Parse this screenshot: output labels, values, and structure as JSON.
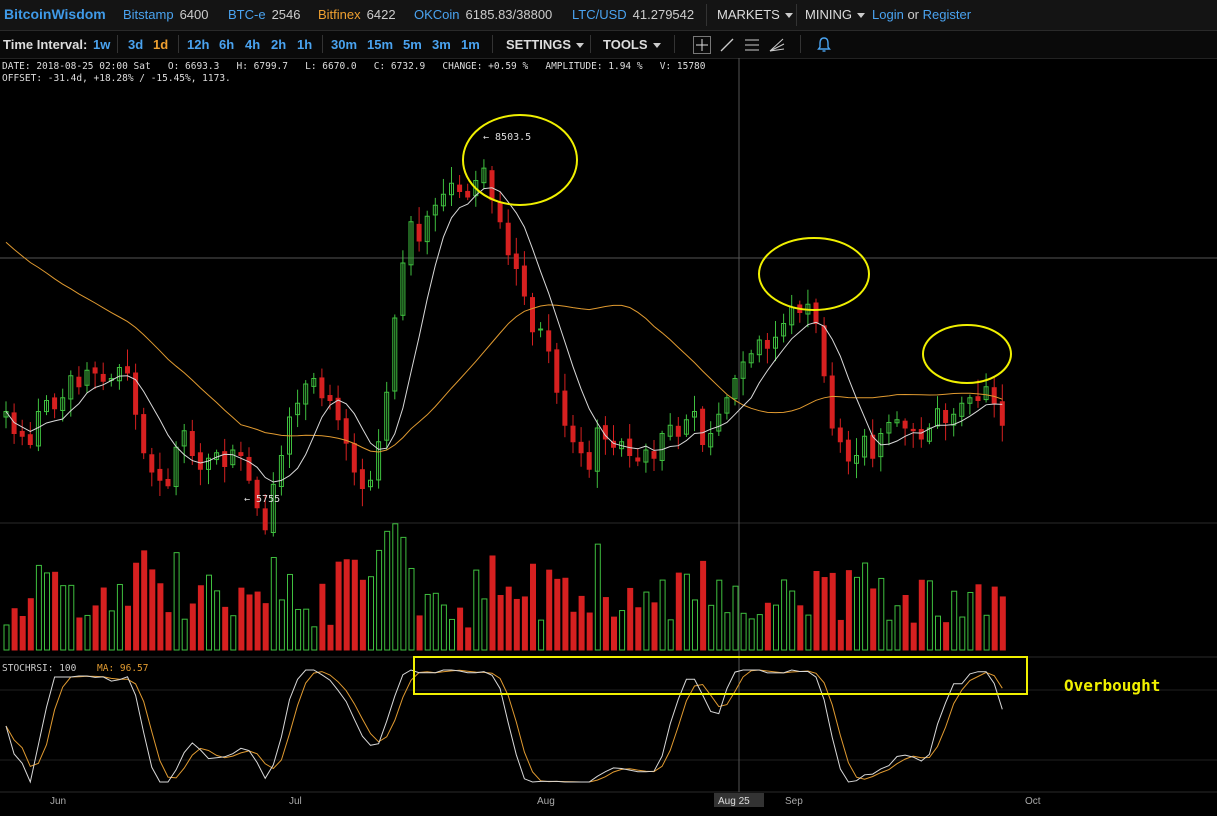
{
  "topbar": {
    "brand": "BitcoinWisdom",
    "exchanges": [
      {
        "name": "Bitstamp",
        "price": "6400",
        "color": "#4aa3f0"
      },
      {
        "name": "BTC-e",
        "price": "2546",
        "color": "#4aa3f0"
      },
      {
        "name": "Bitfinex",
        "price": "6422",
        "color": "#f0a030"
      },
      {
        "name": "OKCoin",
        "price": "6185.83/38800",
        "color": "#4aa3f0"
      },
      {
        "name": "LTC/USD",
        "price": "41.279542",
        "color": "#4aa3f0"
      }
    ],
    "markets_label": "MARKETS",
    "mining_label": "MINING",
    "login_label": "Login",
    "or_label": "or",
    "register_label": "Register"
  },
  "toolbar": {
    "interval_label": "Time Interval:",
    "intervals": [
      "1w",
      "3d",
      "1d",
      "12h",
      "6h",
      "4h",
      "2h",
      "1h",
      "30m",
      "15m",
      "5m",
      "3m",
      "1m"
    ],
    "active_interval": "1d",
    "settings_label": "SETTINGS",
    "tools_label": "TOOLS",
    "icons": [
      "crosshair-icon",
      "line-draw-icon",
      "fibonacci-icon",
      "fan-icon",
      "alert-bell-icon"
    ]
  },
  "info": {
    "line1": "DATE: 2018-08-25 02:00 Sat   O: 6693.3   H: 6799.7   L: 6670.0   C: 6732.9   CHANGE: +0.59 %   AMPLITUDE: 1.94 %   V: 15780",
    "line2": "OFFSET: -31.4d, +18.28% / -15.45%, 1173."
  },
  "chart_data": {
    "type": "candlestick",
    "price_labels": {
      "high": "← 8503.5",
      "low": "← 5755"
    },
    "high_value": 8503.5,
    "low_value": 5755,
    "x_labels": [
      "Jun",
      "Jul",
      "Aug",
      "Aug 25",
      "Sep",
      "Oct"
    ],
    "stochrsi_label": "STOCHRSI: 100",
    "stochrsi_ma_label": "MA: 96.57",
    "annotation_text": "Overbought",
    "colors": {
      "up": "#3fbf3f",
      "down": "#d62020",
      "ma_fast": "#d8d8d8",
      "ma_slow": "#e09a30",
      "highlight": "#f0f000"
    },
    "closes": [
      6620,
      6460,
      6440,
      6380,
      6620,
      6700,
      6640,
      6720,
      6880,
      6800,
      6920,
      6900,
      6840,
      6860,
      6940,
      6900,
      6600,
      6320,
      6180,
      6120,
      6080,
      6360,
      6480,
      6300,
      6200,
      6280,
      6320,
      6220,
      6340,
      6300,
      6120,
      5920,
      5760,
      6090,
      6300,
      6580,
      6680,
      6820,
      6860,
      6720,
      6700,
      6560,
      6390,
      6180,
      6060,
      6120,
      6400,
      6760,
      7300,
      7700,
      8000,
      7860,
      8040,
      8120,
      8200,
      8280,
      8220,
      8180,
      8300,
      8390,
      8160,
      8000,
      7760,
      7660,
      7460,
      7200,
      7220,
      7060,
      6760,
      6520,
      6400,
      6320,
      6200,
      6500,
      6420,
      6360,
      6400,
      6300,
      6260,
      6340,
      6280,
      6460,
      6520,
      6440,
      6560,
      6620,
      6380,
      6460,
      6600,
      6720,
      6860,
      6980,
      7040,
      7140,
      7080,
      7160,
      7260,
      7380,
      7340,
      7400,
      7260,
      6880,
      6500,
      6400,
      6260,
      6300,
      6440,
      6280,
      6460,
      6540,
      6560,
      6500,
      6480,
      6420,
      6500,
      6640,
      6540,
      6600,
      6680,
      6720,
      6700,
      6800,
      6680,
      6520
    ]
  }
}
